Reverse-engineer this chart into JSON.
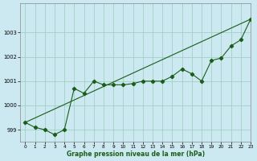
{
  "xlabel": "Graphe pression niveau de la mer (hPa)",
  "background_color": "#cce8f0",
  "grid_color": "#99ccbb",
  "line_color": "#1a5e1a",
  "xlim": [
    -0.5,
    23
  ],
  "ylim": [
    998.5,
    1004.2
  ],
  "yticks": [
    999,
    1000,
    1001,
    1002,
    1003
  ],
  "xticks": [
    0,
    1,
    2,
    3,
    4,
    5,
    6,
    7,
    8,
    9,
    10,
    11,
    12,
    13,
    14,
    15,
    16,
    17,
    18,
    19,
    20,
    21,
    22,
    23
  ],
  "series_measured": {
    "x": [
      0,
      1,
      2,
      3,
      4,
      5,
      6,
      7,
      8,
      9,
      10,
      11,
      12,
      13,
      14,
      15,
      16,
      17,
      18,
      19,
      20,
      21,
      22,
      23
    ],
    "y": [
      999.3,
      999.1,
      999.0,
      998.8,
      999.0,
      1000.7,
      1000.5,
      1001.0,
      1000.85,
      1000.85,
      1000.85,
      1000.9,
      1001.0,
      1001.0,
      1001.0,
      1001.2,
      1001.5,
      1001.3,
      1001.0,
      1001.85,
      1001.95,
      1002.45,
      1002.7,
      1003.55
    ]
  },
  "series_trend": {
    "x": [
      0,
      23
    ],
    "y": [
      999.3,
      1003.55
    ]
  }
}
